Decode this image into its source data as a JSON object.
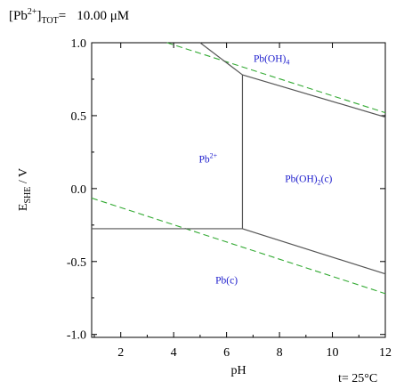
{
  "header": {
    "conc_prefix": "[Pb",
    "conc_sup": "2+",
    "conc_mid": "]",
    "conc_sub": "TOT",
    "conc_eq": "=",
    "conc_value": "10.00 μM"
  },
  "temperature": "t= 25°C",
  "chart_data": {
    "type": "line",
    "title": "",
    "xlabel": "pH",
    "ylabel_main": "E",
    "ylabel_sub": "SHE",
    "ylabel_unit": " / V",
    "xlim": [
      0.9,
      12
    ],
    "ylim": [
      -1.02,
      1.0
    ],
    "xticks": [
      2,
      4,
      6,
      8,
      10,
      12
    ],
    "xtick_labels": [
      "2",
      "4",
      "6",
      "8",
      "10",
      "12"
    ],
    "yticks": [
      1.0,
      0.5,
      0.0,
      -0.5,
      -1.0
    ],
    "ytick_labels": [
      "1.0",
      "0.5",
      "0.0",
      "-0.5",
      "-1.0"
    ],
    "grid": false,
    "colors": {
      "boundary": "#555555",
      "water_lines": "#33aa33",
      "region_text": "#1a1acc"
    },
    "regions": [
      {
        "base": "Pb",
        "sup": "2+",
        "sub": "",
        "suffix": "",
        "x": 5.3,
        "y": 0.18
      },
      {
        "base": "Pb(OH)",
        "sup": "",
        "sub": "4",
        "suffix": "",
        "x": 7.7,
        "y": 0.87
      },
      {
        "base": "Pb(OH)",
        "sup": "",
        "sub": "2",
        "suffix": "(c)",
        "x": 9.1,
        "y": 0.045
      },
      {
        "base": "Pb(c)",
        "sup": "",
        "sub": "",
        "suffix": "",
        "x": 6.0,
        "y": -0.65
      }
    ],
    "boundaries": [
      {
        "name": "pb2-pbc",
        "points": [
          [
            0.9,
            -0.275
          ],
          [
            6.6,
            -0.275
          ]
        ]
      },
      {
        "name": "pb2-pboh2",
        "points": [
          [
            6.6,
            -0.275
          ],
          [
            6.6,
            0.78
          ]
        ]
      },
      {
        "name": "pb2-pboh4",
        "points": [
          [
            5.0,
            1.0
          ],
          [
            6.6,
            0.78
          ]
        ]
      },
      {
        "name": "pboh4-pboh2",
        "points": [
          [
            6.6,
            0.78
          ],
          [
            12.0,
            0.49
          ]
        ]
      },
      {
        "name": "pboh2-pbc",
        "points": [
          [
            6.6,
            -0.275
          ],
          [
            12.0,
            -0.585
          ]
        ]
      }
    ],
    "water_lines": [
      {
        "name": "oxygen-line",
        "points": [
          [
            3.75,
            1.0
          ],
          [
            12.0,
            0.52
          ]
        ]
      },
      {
        "name": "hydrogen-line",
        "points": [
          [
            0.9,
            -0.065
          ],
          [
            12.0,
            -0.72
          ]
        ]
      }
    ]
  }
}
